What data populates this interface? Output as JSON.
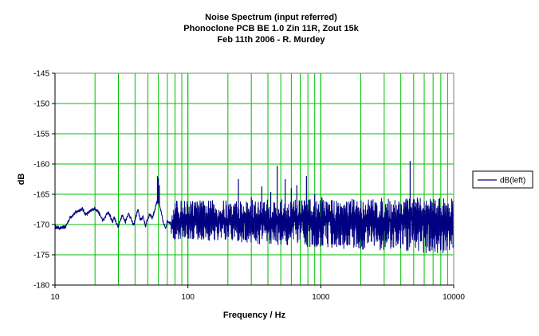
{
  "chart_data": {
    "type": "line",
    "title_lines": [
      "Noise Spectrum (input referred)",
      "Phonoclone PCB BE 1.0 Zin 11R, Zout 15k",
      "Feb 11th 2006 - R. Murdey"
    ],
    "xlabel": "Frequency / Hz",
    "ylabel": "dB",
    "x_scale": "log",
    "xlim": [
      10,
      10000
    ],
    "ylim": [
      -180,
      -145
    ],
    "x_ticks": [
      "10",
      "100",
      "1000",
      "10000"
    ],
    "y_ticks": [
      "-145",
      "-150",
      "-155",
      "-160",
      "-165",
      "-170",
      "-175",
      "-180"
    ],
    "grid": true,
    "legend_position": "right",
    "series": [
      {
        "name": "dB(left)",
        "color": "#000080",
        "trend": [
          [
            10,
            -170.4
          ],
          [
            11,
            -170.6
          ],
          [
            12,
            -170.4
          ],
          [
            13,
            -168.8
          ],
          [
            14,
            -168.2
          ],
          [
            15,
            -167.7
          ],
          [
            16,
            -167.4
          ],
          [
            17,
            -168.3
          ],
          [
            18,
            -168.0
          ],
          [
            19,
            -167.6
          ],
          [
            20,
            -167.3
          ],
          [
            21,
            -167.8
          ],
          [
            22,
            -168.6
          ],
          [
            23,
            -169.4
          ],
          [
            24,
            -168.7
          ],
          [
            25,
            -167.9
          ],
          [
            26,
            -168.6
          ],
          [
            27,
            -169.5
          ],
          [
            28,
            -168.8
          ],
          [
            29,
            -169.8
          ],
          [
            30,
            -170.4
          ],
          [
            31,
            -169.2
          ],
          [
            32,
            -168.4
          ],
          [
            33,
            -169.1
          ],
          [
            34,
            -169.5
          ],
          [
            35,
            -168.5
          ],
          [
            36,
            -168.2
          ],
          [
            37,
            -168.9
          ],
          [
            38,
            -169.6
          ],
          [
            39,
            -170.1
          ],
          [
            40,
            -169.2
          ],
          [
            42,
            -167.6
          ],
          [
            44,
            -169.3
          ],
          [
            46,
            -168.6
          ],
          [
            48,
            -170.3
          ],
          [
            50,
            -168.9
          ],
          [
            52,
            -168.3
          ],
          [
            54,
            -168.9
          ],
          [
            56,
            -167.8
          ],
          [
            58,
            -166.4
          ],
          [
            60,
            -166.2
          ],
          [
            62,
            -167.4
          ],
          [
            64,
            -168.8
          ],
          [
            66,
            -170.1
          ],
          [
            68,
            -170.5
          ],
          [
            70,
            -169.4
          ],
          [
            75,
            -169.8
          ],
          [
            80,
            -169.2
          ],
          [
            90,
            -169.4
          ],
          [
            100,
            -169.0
          ],
          [
            150,
            -169.3
          ],
          [
            200,
            -169.5
          ],
          [
            300,
            -169.7
          ],
          [
            500,
            -169.6
          ],
          [
            700,
            -169.4
          ],
          [
            1000,
            -169.5
          ],
          [
            2000,
            -169.4
          ],
          [
            3000,
            -169.3
          ],
          [
            5000,
            -169.2
          ],
          [
            10000,
            -169.2
          ]
        ],
        "peaks": [
          [
            59,
            -162.0
          ],
          [
            60,
            -162.3
          ],
          [
            61,
            -163.5
          ],
          [
            120,
            -168.0
          ],
          [
            180,
            -168.4
          ],
          [
            240,
            -162.5
          ],
          [
            300,
            -165.5
          ],
          [
            360,
            -163.7
          ],
          [
            420,
            -164.6
          ],
          [
            470,
            -160.3
          ],
          [
            540,
            -162.5
          ],
          [
            600,
            -164.0
          ],
          [
            660,
            -163.5
          ],
          [
            720,
            -166.0
          ],
          [
            780,
            -162.0
          ],
          [
            900,
            -165.0
          ],
          [
            1020,
            -165.5
          ],
          [
            1200,
            -166.0
          ],
          [
            4700,
            -159.5
          ],
          [
            5400,
            -166.5
          ],
          [
            6300,
            -167.0
          ]
        ],
        "noise_band_db": {
          "low": [
            -172.5,
            -175.0
          ],
          "high": [
            -166.0,
            -165.5
          ]
        }
      }
    ]
  }
}
